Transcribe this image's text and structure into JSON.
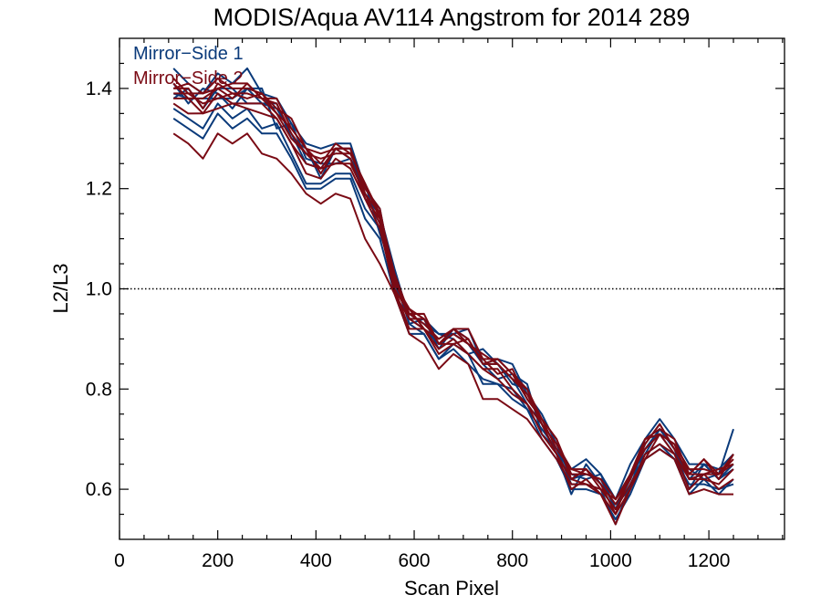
{
  "chart_data": {
    "type": "line",
    "title": "MODIS/Aqua AV114 Angstrom for 2014 289",
    "xlabel": "Scan Pixel",
    "ylabel": "L2/L3",
    "xlim": [
      0,
      1354
    ],
    "ylim": [
      0.5,
      1.5
    ],
    "x_ticks": [
      0,
      200,
      400,
      600,
      800,
      1000,
      1200
    ],
    "x_tick_labels": [
      "0",
      "200",
      "400",
      "600",
      "800",
      "1000",
      "1200"
    ],
    "y_ticks": [
      0.6,
      0.8,
      1.0,
      1.2,
      1.4
    ],
    "y_tick_labels": [
      "0.6",
      "0.8",
      "1.0",
      "1.2",
      "1.4"
    ],
    "x_minor_step": 50,
    "y_minor_step": 0.05,
    "reference_line": {
      "y": 1.0,
      "style": "dotted"
    },
    "grid": false,
    "legend_position": "top-left",
    "legend": [
      {
        "name": "Mirror−Side 1",
        "color": "#0a3a7a"
      },
      {
        "name": "Mirror−Side 2",
        "color": "#7a0a14"
      }
    ],
    "x": [
      110,
      140,
      170,
      200,
      230,
      260,
      290,
      320,
      350,
      380,
      410,
      440,
      470,
      500,
      530,
      560,
      590,
      620,
      650,
      680,
      710,
      740,
      770,
      800,
      830,
      860,
      890,
      920,
      950,
      980,
      1010,
      1040,
      1070,
      1100,
      1130,
      1160,
      1190,
      1220,
      1250
    ],
    "mean_profile": [
      1.39,
      1.38,
      1.37,
      1.39,
      1.38,
      1.39,
      1.37,
      1.35,
      1.31,
      1.26,
      1.24,
      1.27,
      1.26,
      1.19,
      1.14,
      1.01,
      0.94,
      0.93,
      0.89,
      0.9,
      0.89,
      0.85,
      0.84,
      0.82,
      0.78,
      0.73,
      0.68,
      0.62,
      0.63,
      0.61,
      0.56,
      0.62,
      0.68,
      0.71,
      0.68,
      0.62,
      0.64,
      0.62,
      0.65
    ],
    "series": [
      {
        "name": "Mirror−Side 1",
        "color": "#0a3a7a",
        "offsets": [
          0.02,
          -0.01,
          0.03,
          0.0,
          -0.02,
          0.01,
          0.03,
          -0.03,
          0.02,
          0.0,
          0.01,
          -0.02,
          0.0,
          0.02,
          -0.03,
          0.02,
          -0.01,
          0.01,
          0.02,
          0.0,
          -0.02,
          0.03,
          0.01,
          -0.01,
          0.02,
          0.0,
          -0.01,
          -0.03,
          0.02,
          0.0,
          0.01,
          -0.02,
          0.02,
          0.0,
          -0.01,
          0.02,
          -0.02,
          0.01,
          0.07
        ]
      },
      {
        "name": "Mirror−Side 1",
        "color": "#0a3a7a",
        "offsets": [
          -0.03,
          -0.04,
          -0.05,
          -0.02,
          -0.04,
          -0.03,
          -0.05,
          -0.02,
          -0.04,
          -0.05,
          -0.03,
          -0.04,
          -0.03,
          -0.03,
          -0.02,
          0.01,
          -0.01,
          -0.02,
          -0.03,
          -0.01,
          -0.02,
          -0.04,
          -0.03,
          -0.02,
          -0.02,
          -0.01,
          0.0,
          -0.01,
          -0.02,
          -0.01,
          -0.03,
          -0.01,
          -0.01,
          -0.02,
          -0.02,
          -0.01,
          -0.03,
          -0.02,
          -0.04
        ]
      },
      {
        "name": "Mirror−Side 1",
        "color": "#0a3a7a",
        "offsets": [
          0.05,
          0.03,
          0.02,
          0.04,
          0.03,
          0.05,
          0.02,
          0.03,
          0.02,
          0.03,
          0.04,
          0.02,
          0.03,
          0.01,
          0.02,
          0.0,
          0.01,
          0.0,
          0.02,
          0.01,
          0.03,
          0.0,
          0.02,
          0.03,
          0.01,
          0.02,
          0.01,
          0.02,
          0.03,
          0.02,
          0.02,
          0.03,
          0.02,
          0.03,
          0.02,
          0.03,
          0.01,
          0.02,
          0.02
        ]
      },
      {
        "name": "Mirror−Side 1",
        "color": "#0a3a7a",
        "offsets": [
          -0.01,
          0.02,
          -0.01,
          0.01,
          0.02,
          -0.02,
          0.0,
          0.02,
          -0.01,
          0.02,
          -0.02,
          0.01,
          0.02,
          -0.01,
          0.01,
          0.03,
          0.0,
          0.01,
          -0.01,
          0.02,
          0.01,
          0.0,
          -0.02,
          0.01,
          0.03,
          -0.02,
          0.0,
          0.01,
          -0.01,
          0.02,
          0.0,
          0.01,
          -0.01,
          0.01,
          0.0,
          -0.02,
          0.01,
          0.0,
          -0.01
        ]
      },
      {
        "name": "Mirror−Side 1",
        "color": "#0a3a7a",
        "offsets": [
          0.0,
          0.0,
          0.01,
          -0.01,
          0.0,
          0.01,
          0.0,
          0.01,
          0.0,
          -0.01,
          0.0,
          0.01,
          0.0,
          0.0,
          0.01,
          0.0,
          0.0,
          -0.01,
          0.0,
          0.01,
          0.0,
          0.0,
          0.01,
          0.0,
          -0.01,
          0.0,
          0.01,
          0.0,
          0.0,
          0.01,
          0.0,
          0.0,
          0.0,
          0.01,
          0.0,
          0.0,
          0.01,
          0.0,
          0.0
        ]
      },
      {
        "name": "Mirror−Side 1",
        "color": "#0a3a7a",
        "offsets": [
          -0.05,
          -0.06,
          -0.07,
          -0.04,
          -0.06,
          -0.05,
          -0.06,
          -0.04,
          -0.05,
          -0.06,
          -0.04,
          -0.05,
          -0.04,
          -0.05,
          -0.04,
          -0.02,
          -0.03,
          -0.02,
          -0.03,
          -0.02,
          -0.04,
          -0.03,
          -0.03,
          -0.04,
          -0.02,
          -0.03,
          -0.02,
          -0.02,
          -0.03,
          -0.02,
          -0.02,
          -0.03,
          -0.02,
          -0.03,
          -0.02,
          -0.03,
          -0.02,
          -0.03,
          -0.03
        ]
      },
      {
        "name": "Mirror−Side 2",
        "color": "#7a0a14",
        "offsets": [
          0.01,
          0.02,
          -0.01,
          0.02,
          0.01,
          -0.01,
          0.02,
          0.0,
          0.01,
          0.02,
          -0.01,
          0.01,
          0.02,
          0.0,
          0.01,
          0.0,
          0.02,
          -0.01,
          0.01,
          0.02,
          0.0,
          0.01,
          -0.01,
          0.02,
          0.0,
          0.01,
          0.02,
          0.0,
          0.01,
          -0.01,
          0.02,
          0.0,
          0.01,
          0.02,
          0.0,
          0.01,
          -0.01,
          0.02,
          0.0
        ]
      },
      {
        "name": "Mirror−Side 2",
        "color": "#7a0a14",
        "offsets": [
          -0.08,
          -0.09,
          -0.11,
          -0.08,
          -0.09,
          -0.08,
          -0.1,
          -0.09,
          -0.08,
          -0.07,
          -0.07,
          -0.08,
          -0.08,
          -0.09,
          -0.09,
          -0.02,
          -0.03,
          -0.04,
          -0.05,
          -0.03,
          -0.04,
          -0.07,
          -0.06,
          -0.06,
          -0.04,
          -0.03,
          -0.02,
          -0.01,
          -0.02,
          -0.02,
          -0.03,
          -0.02,
          -0.02,
          -0.03,
          -0.02,
          -0.03,
          -0.04,
          -0.03,
          -0.06
        ]
      },
      {
        "name": "Mirror−Side 2",
        "color": "#7a0a14",
        "offsets": [
          0.03,
          0.01,
          0.02,
          0.03,
          0.02,
          0.01,
          0.02,
          0.01,
          0.03,
          0.02,
          0.01,
          0.02,
          0.01,
          0.02,
          0.01,
          0.02,
          0.01,
          0.0,
          0.01,
          0.02,
          0.03,
          0.01,
          0.02,
          0.01,
          0.0,
          0.01,
          0.02,
          0.01,
          0.0,
          0.01,
          0.02,
          0.01,
          0.02,
          0.01,
          0.02,
          0.01,
          0.02,
          0.01,
          0.01
        ]
      },
      {
        "name": "Mirror−Side 2",
        "color": "#7a0a14",
        "offsets": [
          -0.02,
          -0.03,
          -0.02,
          -0.03,
          -0.01,
          -0.03,
          -0.02,
          -0.01,
          -0.02,
          -0.03,
          -0.02,
          -0.01,
          -0.02,
          -0.01,
          -0.02,
          -0.01,
          -0.02,
          -0.01,
          -0.02,
          -0.01,
          -0.02,
          -0.01,
          -0.02,
          -0.03,
          -0.01,
          -0.02,
          -0.01,
          -0.02,
          -0.01,
          -0.02,
          -0.01,
          -0.02,
          -0.01,
          -0.02,
          -0.01,
          -0.02,
          -0.01,
          -0.02,
          -0.03
        ]
      },
      {
        "name": "Mirror−Side 2",
        "color": "#7a0a14",
        "offsets": [
          0.0,
          0.01,
          0.0,
          -0.01,
          0.01,
          0.0,
          0.01,
          0.0,
          -0.01,
          0.01,
          0.0,
          0.01,
          0.0,
          -0.01,
          0.0,
          0.01,
          0.0,
          0.01,
          0.0,
          -0.01,
          0.01,
          0.0,
          0.01,
          0.0,
          0.01,
          0.0,
          -0.01,
          0.0,
          0.01,
          0.0,
          -0.01,
          0.01,
          0.0,
          0.0,
          0.01,
          0.0,
          -0.01,
          0.01,
          0.0
        ]
      },
      {
        "name": "Mirror−Side 2",
        "color": "#7a0a14",
        "offsets": [
          0.02,
          0.0,
          0.01,
          0.01,
          0.0,
          0.02,
          0.01,
          0.02,
          0.0,
          0.01,
          0.02,
          0.0,
          0.01,
          0.02,
          0.0,
          -0.01,
          0.01,
          0.02,
          0.0,
          0.01,
          0.0,
          0.02,
          0.01,
          0.0,
          0.02,
          0.01,
          0.0,
          0.02,
          0.01,
          0.0,
          0.01,
          0.0,
          0.02,
          0.0,
          0.01,
          0.02,
          0.0,
          0.01,
          0.02
        ]
      },
      {
        "name": "Mirror−Side 2",
        "color": "#7a0a14",
        "offsets": [
          -0.01,
          0.0,
          -0.02,
          0.0,
          -0.01,
          -0.02,
          0.0,
          -0.01,
          -0.02,
          -0.01,
          0.0,
          -0.02,
          -0.01,
          0.0,
          -0.01,
          -0.02,
          0.0,
          -0.01,
          -0.01,
          0.0,
          -0.02,
          -0.01,
          0.0,
          -0.02,
          -0.01,
          0.0,
          -0.01,
          0.0,
          -0.02,
          -0.01,
          0.0,
          -0.01,
          -0.02,
          0.0,
          -0.01,
          0.0,
          -0.02,
          -0.01,
          -0.01
        ]
      },
      {
        "name": "Mirror−Side 2",
        "color": "#7a0a14",
        "offsets": [
          0.01,
          0.03,
          0.02,
          0.01,
          0.03,
          0.02,
          0.01,
          0.03,
          0.01,
          0.02,
          0.03,
          0.01,
          0.02,
          0.01,
          0.02,
          0.0,
          0.02,
          0.01,
          0.0,
          0.02,
          0.01,
          0.0,
          0.02,
          0.01,
          0.02,
          0.0,
          0.01,
          0.02,
          0.0,
          0.01,
          0.02,
          0.0,
          0.01,
          0.02,
          0.0,
          0.01,
          0.02,
          0.0,
          0.02
        ]
      }
    ]
  }
}
